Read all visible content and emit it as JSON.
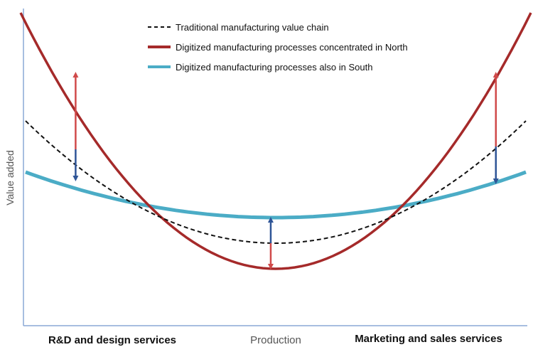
{
  "chart_data": {
    "type": "line",
    "title": "",
    "ylabel": "Value added",
    "x_categories": [
      "R&D and design services",
      "Production",
      "Marketing and sales services"
    ],
    "series": [
      {
        "name": "Traditional manufacturing value chain",
        "style": "dashed",
        "color": "#111111",
        "points": [
          [
            0.0,
            0.62
          ],
          [
            0.5,
            0.19
          ],
          [
            1.0,
            0.62
          ]
        ]
      },
      {
        "name": "Digitized manufacturing processes concentrated in North",
        "style": "solid",
        "color": "#a52a2a",
        "points": [
          [
            -0.01,
            1.0
          ],
          [
            0.5,
            0.1
          ],
          [
            1.01,
            1.0
          ]
        ]
      },
      {
        "name": "Digitized manufacturing processes also in South",
        "style": "solid",
        "color": "#4bacc6",
        "points": [
          [
            0.0,
            0.44
          ],
          [
            0.5,
            0.28
          ],
          [
            1.0,
            0.44
          ]
        ]
      }
    ],
    "arrows": [
      {
        "x": 0.1,
        "from": 0.52,
        "to": 0.79,
        "color": "#d04a4a",
        "meaning": "up to North curve"
      },
      {
        "x": 0.1,
        "from": 0.52,
        "to": 0.41,
        "color": "#2f5597",
        "meaning": "down to South curve"
      },
      {
        "x": 0.49,
        "from": 0.19,
        "to": 0.28,
        "color": "#2f5597",
        "meaning": "up to South curve"
      },
      {
        "x": 0.49,
        "from": 0.19,
        "to": 0.1,
        "color": "#d04a4a",
        "meaning": "down to North curve"
      },
      {
        "x": 0.94,
        "from": 0.53,
        "to": 0.79,
        "color": "#d04a4a",
        "meaning": "up to North curve"
      },
      {
        "x": 0.94,
        "from": 0.53,
        "to": 0.4,
        "color": "#2f5597",
        "meaning": "down to South curve"
      }
    ],
    "legend_position": "top-center",
    "grid": false
  },
  "axis_color": "#8aa8d6"
}
